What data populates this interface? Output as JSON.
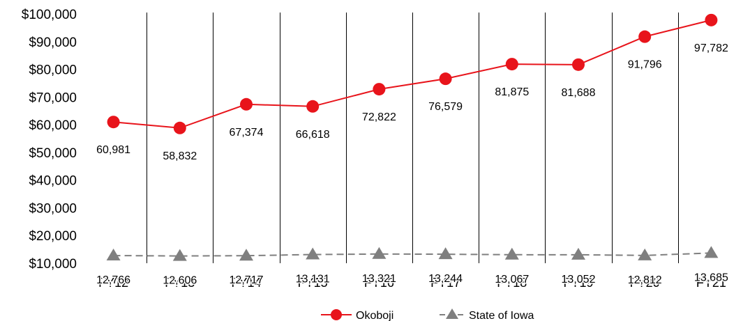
{
  "chart_data": {
    "type": "line",
    "categories": [
      "FY12",
      "FY13",
      "FY14",
      "FY15",
      "FY16",
      "FY17",
      "FY18",
      "FY19",
      "FY20",
      "FY21"
    ],
    "series": [
      {
        "name": "Okoboji",
        "values": [
          60981,
          58832,
          67374,
          66618,
          72822,
          76579,
          81875,
          81688,
          91796,
          97782
        ],
        "labels": [
          "60,981",
          "58,832",
          "67,374",
          "66,618",
          "72,822",
          "76,579",
          "81,875",
          "81,688",
          "91,796",
          "97,782"
        ],
        "color": "#e8141b",
        "marker": "circle",
        "line_style": "solid"
      },
      {
        "name": "State of Iowa",
        "values": [
          12766,
          12606,
          12717,
          13131,
          13321,
          13244,
          13067,
          13052,
          12812,
          13685
        ],
        "labels": [
          "12,766",
          "12,606",
          "12,717",
          "13,131",
          "13,321",
          "13,244",
          "13,067",
          "13,052",
          "12,812",
          "13,685"
        ],
        "color": "#7f7f7f",
        "marker": "triangle",
        "line_style": "dashed"
      }
    ],
    "yticks": [
      "$10,000",
      "$20,000",
      "$30,000",
      "$40,000",
      "$50,000",
      "$60,000",
      "$70,000",
      "$80,000",
      "$90,000",
      "$100,000"
    ],
    "ylim": [
      10000,
      100000
    ],
    "grid": "vertical",
    "legend_placement": "bottom-center"
  }
}
